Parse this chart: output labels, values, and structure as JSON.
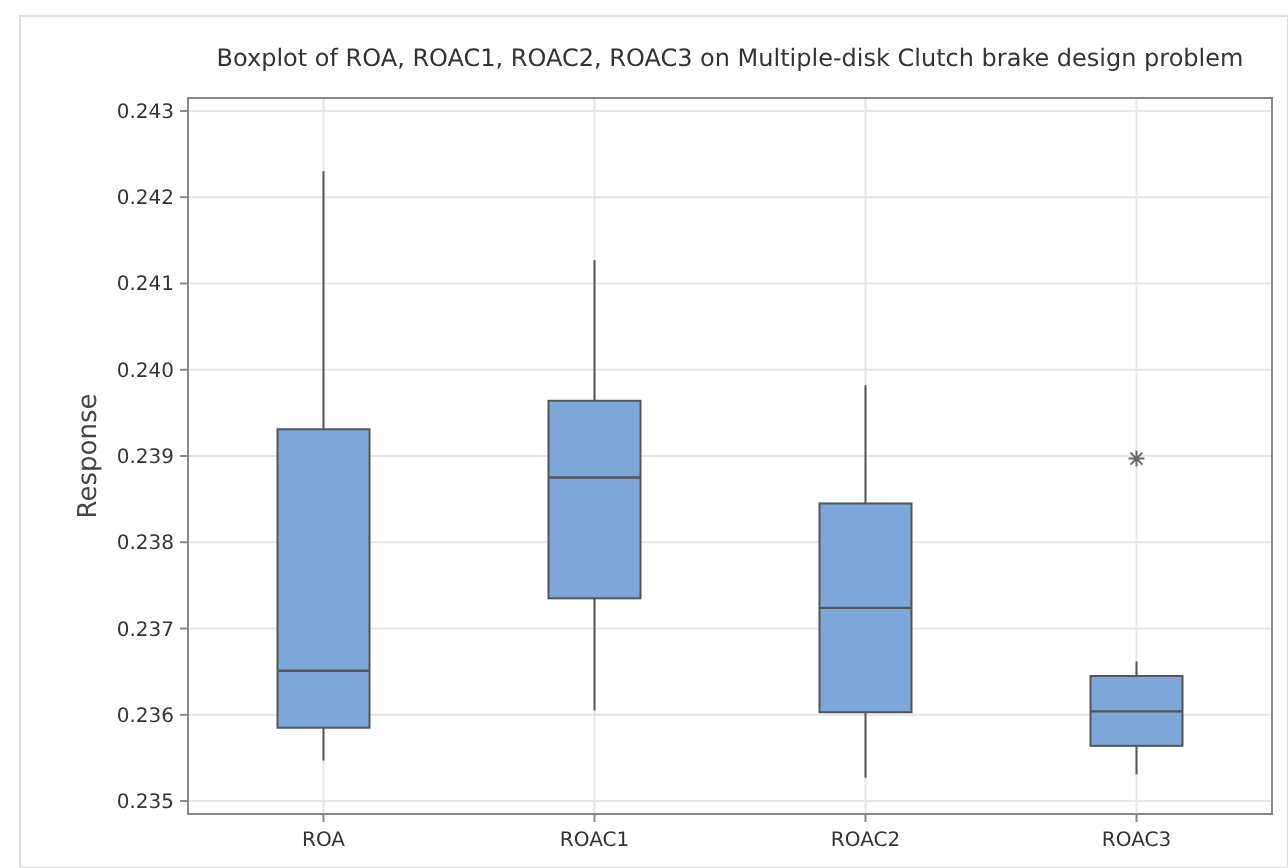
{
  "chart_data": {
    "type": "box",
    "title": "Boxplot of ROA, ROAC1, ROAC2, ROAC3 on Multiple-disk Clutch brake design problem",
    "ylabel": "Response",
    "categories": [
      "ROA",
      "ROAC1",
      "ROAC2",
      "ROAC3"
    ],
    "color": "#7da7d9",
    "boxes": [
      {
        "low": 0.23547,
        "q1": 0.23585,
        "median": 0.23651,
        "q3": 0.23931,
        "high": 0.2423
      },
      {
        "low": 0.23605,
        "q1": 0.23735,
        "median": 0.23875,
        "q3": 0.23964,
        "high": 0.24127
      },
      {
        "low": 0.23527,
        "q1": 0.23603,
        "median": 0.23724,
        "q3": 0.23845,
        "high": 0.23982
      },
      {
        "low": 0.23531,
        "q1": 0.23564,
        "median": 0.23604,
        "q3": 0.23645,
        "high": 0.23662,
        "outliers": [
          0.23897
        ]
      }
    ],
    "ylim": [
      0.23485,
      0.24315
    ],
    "yticks": [
      0.235,
      0.236,
      0.237,
      0.238,
      0.239,
      {
        "value": 0.24,
        "label": "0.240"
      },
      0.241,
      0.242,
      0.243
    ],
    "grid": true
  }
}
